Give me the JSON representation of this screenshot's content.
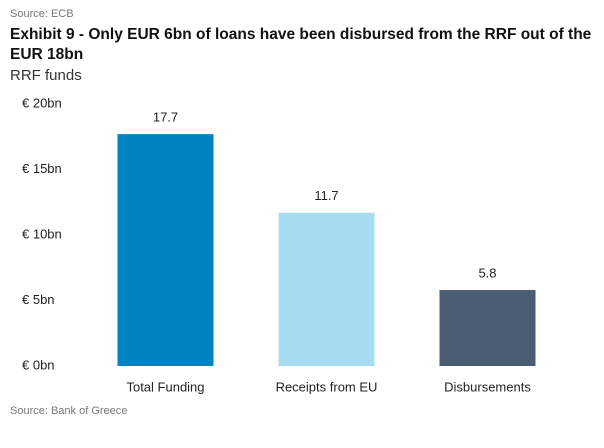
{
  "chart_data": {
    "type": "bar",
    "source_top": "Source: ECB",
    "title": "Exhibit 9 - Only EUR 6bn of loans have been disbursed from the RRF out of the EUR 18bn",
    "subtitle": "RRF funds",
    "source_bottom": "Source: Bank of Greece",
    "categories": [
      "Total Funding",
      "Receipts from EU",
      "Disbursements"
    ],
    "values": [
      17.7,
      11.7,
      5.8
    ],
    "colors": [
      "#0083c1",
      "#a8dcf0",
      "#4a5d72"
    ],
    "ylim": [
      0,
      20
    ],
    "yticks": [
      {
        "value": 0,
        "label": "€ 0bn"
      },
      {
        "value": 5,
        "label": "€ 5bn"
      },
      {
        "value": 10,
        "label": "€ 10bn"
      },
      {
        "value": 15,
        "label": "€ 15bn"
      },
      {
        "value": 20,
        "label": "€ 20bn"
      }
    ],
    "grid": false
  }
}
